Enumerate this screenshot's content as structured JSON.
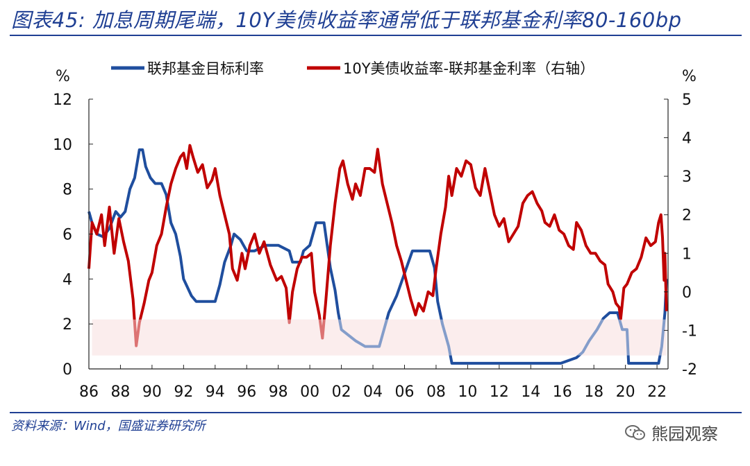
{
  "header": {
    "title": "图表45: 加息周期尾端，10Y美债收益率通常低于联邦基金利率80-160bp"
  },
  "footer": {
    "source": "资料来源：Wind，国盛证券研究所",
    "watermark": "熊园观察",
    "watermark_icon": "wechat-icon"
  },
  "colors": {
    "series_fed": "#1f4e9e",
    "series_spread": "#c00000",
    "band": "#f7dede"
  },
  "chart_data": {
    "type": "line",
    "left_axis": {
      "label": "%",
      "ylim": [
        0,
        12
      ],
      "ticks": [
        "0",
        "2",
        "4",
        "6",
        "8",
        "10",
        "12"
      ]
    },
    "right_axis": {
      "label": "%",
      "ylim": [
        -2,
        5
      ],
      "ticks": [
        "-2",
        "-1",
        "0",
        "1",
        "2",
        "3",
        "4",
        "5"
      ]
    },
    "x_axis": {
      "range": [
        1986,
        2022.7
      ],
      "ticks": [
        "86",
        "88",
        "90",
        "92",
        "94",
        "96",
        "98",
        "00",
        "02",
        "04",
        "06",
        "08",
        "10",
        "12",
        "14",
        "16",
        "18",
        "20",
        "22"
      ]
    },
    "band": {
      "y_range_left_axis": [
        0.6,
        2.2
      ],
      "x_range": [
        1986.2,
        2022.6
      ]
    },
    "legend": {
      "placement": "top"
    },
    "series": [
      {
        "name": "联邦基金目标利率",
        "axis": "left",
        "points": [
          [
            1986.0,
            7.0
          ],
          [
            1986.2,
            6.5
          ],
          [
            1986.5,
            6.0
          ],
          [
            1986.9,
            5.88
          ],
          [
            1987.3,
            6.25
          ],
          [
            1987.7,
            7.0
          ],
          [
            1988.0,
            6.75
          ],
          [
            1988.3,
            7.0
          ],
          [
            1988.6,
            8.0
          ],
          [
            1988.9,
            8.5
          ],
          [
            1989.2,
            9.75
          ],
          [
            1989.4,
            9.75
          ],
          [
            1989.6,
            9.0
          ],
          [
            1989.9,
            8.5
          ],
          [
            1990.2,
            8.25
          ],
          [
            1990.6,
            8.25
          ],
          [
            1990.9,
            7.75
          ],
          [
            1991.2,
            6.5
          ],
          [
            1991.5,
            6.0
          ],
          [
            1991.8,
            5.0
          ],
          [
            1992.0,
            4.0
          ],
          [
            1992.5,
            3.25
          ],
          [
            1992.8,
            3.0
          ],
          [
            1993.5,
            3.0
          ],
          [
            1994.0,
            3.0
          ],
          [
            1994.3,
            3.75
          ],
          [
            1994.6,
            4.75
          ],
          [
            1995.0,
            5.5
          ],
          [
            1995.2,
            6.0
          ],
          [
            1995.6,
            5.75
          ],
          [
            1996.0,
            5.25
          ],
          [
            1996.5,
            5.25
          ],
          [
            1997.2,
            5.5
          ],
          [
            1998.0,
            5.5
          ],
          [
            1998.7,
            5.25
          ],
          [
            1998.9,
            4.75
          ],
          [
            1999.4,
            4.75
          ],
          [
            1999.6,
            5.25
          ],
          [
            2000.0,
            5.5
          ],
          [
            2000.4,
            6.5
          ],
          [
            2000.9,
            6.5
          ],
          [
            2001.1,
            5.5
          ],
          [
            2001.3,
            4.5
          ],
          [
            2001.6,
            3.5
          ],
          [
            2001.8,
            2.5
          ],
          [
            2002.0,
            1.75
          ],
          [
            2002.9,
            1.25
          ],
          [
            2003.5,
            1.0
          ],
          [
            2004.4,
            1.0
          ],
          [
            2004.6,
            1.5
          ],
          [
            2005.0,
            2.5
          ],
          [
            2005.5,
            3.25
          ],
          [
            2006.0,
            4.25
          ],
          [
            2006.5,
            5.25
          ],
          [
            2007.6,
            5.25
          ],
          [
            2007.9,
            4.5
          ],
          [
            2008.1,
            3.0
          ],
          [
            2008.4,
            2.0
          ],
          [
            2008.8,
            1.0
          ],
          [
            2009.0,
            0.25
          ],
          [
            2015.9,
            0.25
          ],
          [
            2016.9,
            0.5
          ],
          [
            2017.3,
            0.75
          ],
          [
            2017.7,
            1.25
          ],
          [
            2018.2,
            1.75
          ],
          [
            2018.6,
            2.25
          ],
          [
            2019.0,
            2.5
          ],
          [
            2019.5,
            2.5
          ],
          [
            2019.8,
            1.75
          ],
          [
            2020.1,
            1.75
          ],
          [
            2020.2,
            0.25
          ],
          [
            2022.1,
            0.25
          ],
          [
            2022.3,
            1.0
          ],
          [
            2022.5,
            2.5
          ],
          [
            2022.6,
            4.0
          ]
        ]
      },
      {
        "name": "10Y美债收益率-联邦基金利率（右轴）",
        "axis": "right",
        "points": [
          [
            1986.0,
            0.6
          ],
          [
            1986.2,
            1.8
          ],
          [
            1986.5,
            1.5
          ],
          [
            1986.8,
            2.0
          ],
          [
            1987.0,
            1.2
          ],
          [
            1987.3,
            2.2
          ],
          [
            1987.6,
            1.0
          ],
          [
            1987.9,
            1.9
          ],
          [
            1988.2,
            1.3
          ],
          [
            1988.5,
            0.8
          ],
          [
            1988.8,
            -0.2
          ],
          [
            1989.0,
            -1.4
          ],
          [
            1989.2,
            -0.8
          ],
          [
            1989.5,
            -0.3
          ],
          [
            1989.8,
            0.3
          ],
          [
            1990.0,
            0.5
          ],
          [
            1990.3,
            1.2
          ],
          [
            1990.6,
            1.5
          ],
          [
            1990.9,
            2.2
          ],
          [
            1991.2,
            2.8
          ],
          [
            1991.5,
            3.2
          ],
          [
            1991.8,
            3.5
          ],
          [
            1992.0,
            3.6
          ],
          [
            1992.2,
            3.2
          ],
          [
            1992.4,
            3.8
          ],
          [
            1992.6,
            3.5
          ],
          [
            1992.9,
            3.1
          ],
          [
            1993.2,
            3.3
          ],
          [
            1993.5,
            2.7
          ],
          [
            1993.8,
            2.9
          ],
          [
            1994.0,
            3.2
          ],
          [
            1994.3,
            2.5
          ],
          [
            1994.6,
            2.0
          ],
          [
            1994.9,
            1.5
          ],
          [
            1995.1,
            0.6
          ],
          [
            1995.4,
            0.3
          ],
          [
            1995.7,
            1.0
          ],
          [
            1995.9,
            0.6
          ],
          [
            1996.2,
            1.2
          ],
          [
            1996.5,
            1.5
          ],
          [
            1996.8,
            1.0
          ],
          [
            1997.1,
            1.3
          ],
          [
            1997.5,
            0.7
          ],
          [
            1997.9,
            0.3
          ],
          [
            1998.2,
            0.4
          ],
          [
            1998.5,
            0.1
          ],
          [
            1998.7,
            -0.8
          ],
          [
            1998.9,
            0.0
          ],
          [
            1999.2,
            0.6
          ],
          [
            1999.5,
            0.9
          ],
          [
            1999.8,
            0.9
          ],
          [
            2000.1,
            1.0
          ],
          [
            2000.3,
            0.0
          ],
          [
            2000.6,
            -0.6
          ],
          [
            2000.8,
            -1.2
          ],
          [
            2001.0,
            -0.3
          ],
          [
            2001.3,
            1.2
          ],
          [
            2001.6,
            2.3
          ],
          [
            2001.9,
            3.2
          ],
          [
            2002.1,
            3.4
          ],
          [
            2002.4,
            2.8
          ],
          [
            2002.7,
            2.4
          ],
          [
            2002.9,
            2.8
          ],
          [
            2003.2,
            2.5
          ],
          [
            2003.5,
            3.2
          ],
          [
            2003.8,
            3.2
          ],
          [
            2004.1,
            3.1
          ],
          [
            2004.3,
            3.7
          ],
          [
            2004.6,
            2.8
          ],
          [
            2004.9,
            2.3
          ],
          [
            2005.2,
            1.8
          ],
          [
            2005.5,
            1.2
          ],
          [
            2005.8,
            0.8
          ],
          [
            2006.1,
            0.3
          ],
          [
            2006.4,
            -0.2
          ],
          [
            2006.7,
            -0.6
          ],
          [
            2006.9,
            -0.3
          ],
          [
            2007.2,
            -0.5
          ],
          [
            2007.5,
            0.0
          ],
          [
            2007.8,
            -0.1
          ],
          [
            2008.0,
            0.6
          ],
          [
            2008.3,
            1.5
          ],
          [
            2008.6,
            2.2
          ],
          [
            2008.8,
            3.0
          ],
          [
            2009.0,
            2.5
          ],
          [
            2009.3,
            3.2
          ],
          [
            2009.6,
            3.0
          ],
          [
            2009.9,
            3.4
          ],
          [
            2010.2,
            3.3
          ],
          [
            2010.5,
            2.7
          ],
          [
            2010.8,
            2.5
          ],
          [
            2011.1,
            3.2
          ],
          [
            2011.4,
            2.6
          ],
          [
            2011.7,
            2.0
          ],
          [
            2012.0,
            1.7
          ],
          [
            2012.3,
            1.9
          ],
          [
            2012.6,
            1.3
          ],
          [
            2012.9,
            1.5
          ],
          [
            2013.2,
            1.7
          ],
          [
            2013.5,
            2.3
          ],
          [
            2013.8,
            2.5
          ],
          [
            2014.1,
            2.6
          ],
          [
            2014.4,
            2.3
          ],
          [
            2014.7,
            2.1
          ],
          [
            2014.9,
            1.8
          ],
          [
            2015.2,
            1.7
          ],
          [
            2015.5,
            2.0
          ],
          [
            2015.8,
            1.6
          ],
          [
            2016.1,
            1.5
          ],
          [
            2016.4,
            1.2
          ],
          [
            2016.7,
            1.1
          ],
          [
            2016.9,
            1.8
          ],
          [
            2017.2,
            1.6
          ],
          [
            2017.5,
            1.2
          ],
          [
            2017.8,
            1.0
          ],
          [
            2018.1,
            1.0
          ],
          [
            2018.4,
            0.8
          ],
          [
            2018.7,
            0.7
          ],
          [
            2018.9,
            0.2
          ],
          [
            2019.2,
            0.0
          ],
          [
            2019.4,
            -0.3
          ],
          [
            2019.6,
            -0.4
          ],
          [
            2019.7,
            -0.7
          ],
          [
            2019.9,
            0.1
          ],
          [
            2020.1,
            0.2
          ],
          [
            2020.4,
            0.5
          ],
          [
            2020.7,
            0.6
          ],
          [
            2021.0,
            0.9
          ],
          [
            2021.3,
            1.4
          ],
          [
            2021.6,
            1.2
          ],
          [
            2021.9,
            1.3
          ],
          [
            2022.1,
            1.8
          ],
          [
            2022.25,
            2.0
          ],
          [
            2022.35,
            1.4
          ],
          [
            2022.45,
            0.3
          ],
          [
            2022.5,
            1.0
          ],
          [
            2022.6,
            -0.5
          ]
        ]
      }
    ]
  }
}
